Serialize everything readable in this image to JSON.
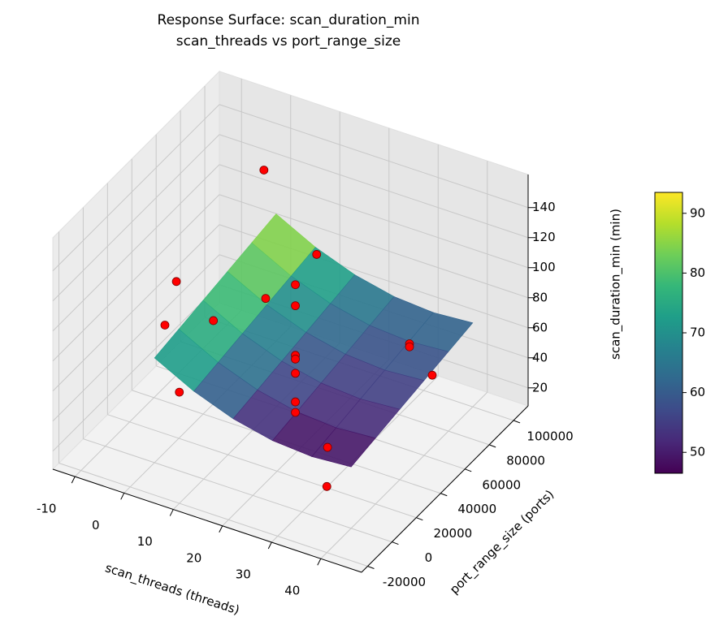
{
  "chart_data": {
    "type": "surface3d",
    "title": "Response Surface: scan_duration_min",
    "subtitle": "scan_threads vs port_range_size",
    "xlabel": "scan_threads (threads)",
    "ylabel": "port_range_size (ports)",
    "zlabel": "scan_duration_min (min)",
    "xlim": [
      -14.5,
      48.3
    ],
    "ylim": [
      -25000,
      112000
    ],
    "zlim": [
      8,
      162
    ],
    "xticks": [
      -10,
      0,
      10,
      20,
      30,
      40
    ],
    "yticks": [
      -20000,
      0,
      20000,
      40000,
      60000,
      80000,
      100000
    ],
    "zticks": [
      20,
      40,
      60,
      80,
      100,
      120,
      140
    ],
    "grid": true,
    "surface": {
      "colormap": "viridis",
      "clim": [
        46.5,
        93.5
      ],
      "cticks": [
        50,
        60,
        70,
        80,
        90
      ],
      "x": [
        0,
        8,
        16,
        24,
        32,
        40
      ],
      "y": [
        0,
        20000,
        40000,
        60000,
        80000,
        100000
      ],
      "z": [
        [
          77.7,
          64.3,
          54.7,
          48.9,
          47.0,
          48.9
        ],
        [
          80.7,
          67.3,
          57.7,
          51.9,
          50.0,
          51.9
        ],
        [
          83.7,
          70.3,
          60.7,
          54.9,
          53.0,
          54.9
        ],
        [
          86.7,
          73.3,
          63.7,
          57.9,
          56.0,
          57.9
        ],
        [
          89.7,
          76.3,
          66.7,
          60.9,
          59.0,
          60.9
        ],
        [
          92.7,
          79.3,
          69.7,
          63.9,
          62.0,
          63.9
        ]
      ]
    },
    "points": {
      "color": "#ff0000",
      "x": [
        20,
        20,
        20,
        20,
        20,
        20,
        20,
        0,
        20,
        0,
        10,
        -10,
        10,
        40,
        40,
        40,
        10,
        30,
        40
      ],
      "y": [
        35000,
        35000,
        35000,
        35000,
        35000,
        35000,
        35000,
        90000,
        52500,
        18000,
        51000,
        49000,
        8000,
        48000,
        48000,
        66700,
        -20000,
        21000,
        -20000
      ],
      "z": [
        120,
        106,
        73,
        70.5,
        61,
        42,
        35,
        130,
        126,
        114,
        87,
        49,
        107,
        92,
        90,
        56,
        82,
        34,
        52
      ]
    }
  }
}
